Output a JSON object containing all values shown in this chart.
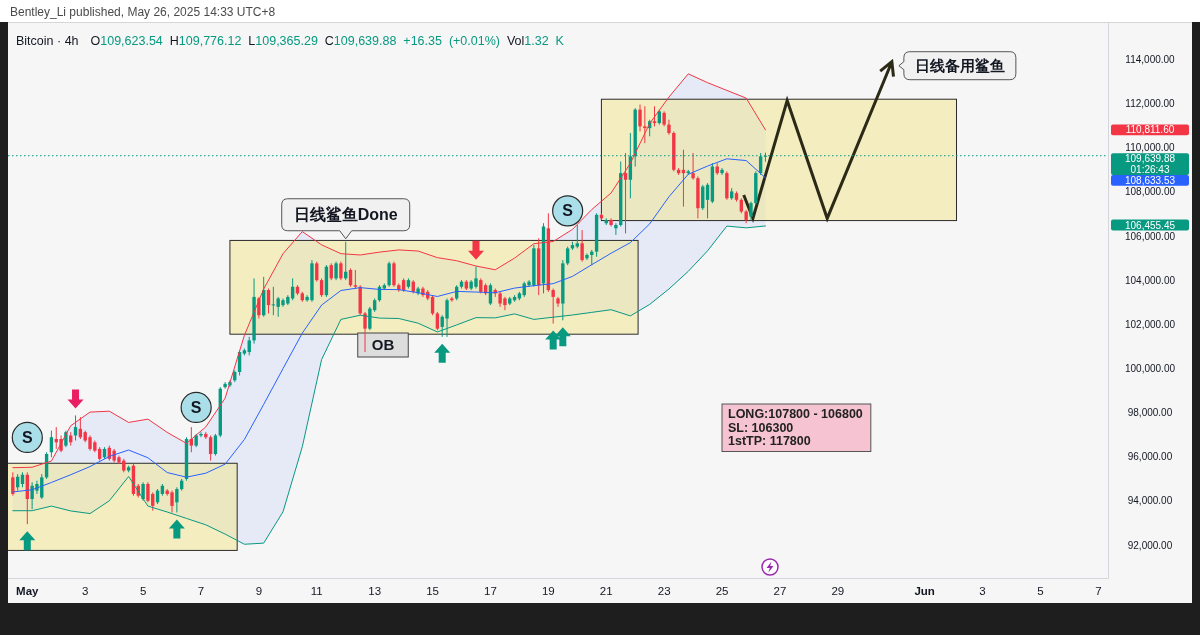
{
  "chart_data": {
    "type": "candlestick",
    "title": "Bitcoin · 4h",
    "subtitle": "O109,623.54 H109,776.12 L109,365.29 C109,639.88 +16.35 (+0.01%) Vol1.32 K",
    "annotations": [
      "Bentley_Li published, May 26, 2025 14:33 UTC+8",
      {
        "text": "日线鲨鱼Done",
        "x": "2025-05-12T00:00",
        "y": 105740
      },
      "日线备用鲨鱼",
      "OB",
      {
        "text": "S",
        "x": "2025-05-01T00:00",
        "y": 96870
      },
      {
        "text": "S",
        "x": "2025-05-06T20:00",
        "y": 98230
      },
      {
        "text": "S",
        "x": "2025-05-19T16:00",
        "y": 107140
      },
      "LONG:107800 - 106800",
      "SL: 106300",
      "1stTP: 117800",
      "01:26:43",
      "110,811.60",
      "108,633.53",
      "106,455.45"
    ],
    "x": [
      "2025-04-30T12:00",
      "2025-04-30T16:00",
      "2025-04-30T20:00",
      "2025-05-01T00:00",
      "2025-05-01T04:00",
      "2025-05-01T08:00",
      "2025-05-01T12:00",
      "2025-05-01T16:00",
      "2025-05-01T20:00",
      "2025-05-02T00:00",
      "2025-05-02T04:00",
      "2025-05-02T08:00",
      "2025-05-02T12:00",
      "2025-05-02T16:00",
      "2025-05-02T20:00",
      "2025-05-03T00:00",
      "2025-05-03T04:00",
      "2025-05-03T08:00",
      "2025-05-03T12:00",
      "2025-05-03T16:00",
      "2025-05-03T20:00",
      "2025-05-04T00:00",
      "2025-05-04T04:00",
      "2025-05-04T08:00",
      "2025-05-04T12:00",
      "2025-05-04T16:00",
      "2025-05-04T20:00",
      "2025-05-05T00:00",
      "2025-05-05T04:00",
      "2025-05-05T08:00",
      "2025-05-05T12:00",
      "2025-05-05T16:00",
      "2025-05-05T20:00",
      "2025-05-06T00:00",
      "2025-05-06T04:00",
      "2025-05-06T08:00",
      "2025-05-06T12:00",
      "2025-05-06T16:00",
      "2025-05-06T20:00",
      "2025-05-07T00:00",
      "2025-05-07T04:00",
      "2025-05-07T08:00",
      "2025-05-07T12:00",
      "2025-05-07T16:00",
      "2025-05-07T20:00",
      "2025-05-08T00:00",
      "2025-05-08T04:00",
      "2025-05-08T08:00",
      "2025-05-08T12:00",
      "2025-05-08T16:00",
      "2025-05-08T20:00",
      "2025-05-09T00:00",
      "2025-05-09T04:00",
      "2025-05-09T08:00",
      "2025-05-09T12:00",
      "2025-05-09T16:00",
      "2025-05-09T20:00",
      "2025-05-10T00:00",
      "2025-05-10T04:00",
      "2025-05-10T08:00",
      "2025-05-10T12:00",
      "2025-05-10T16:00",
      "2025-05-10T20:00",
      "2025-05-11T00:00",
      "2025-05-11T04:00",
      "2025-05-11T08:00",
      "2025-05-11T12:00",
      "2025-05-11T16:00",
      "2025-05-11T20:00",
      "2025-05-12T00:00",
      "2025-05-12T04:00",
      "2025-05-12T08:00",
      "2025-05-12T12:00",
      "2025-05-12T16:00",
      "2025-05-12T20:00",
      "2025-05-13T00:00",
      "2025-05-13T04:00",
      "2025-05-13T08:00",
      "2025-05-13T12:00",
      "2025-05-13T16:00",
      "2025-05-13T20:00",
      "2025-05-14T00:00",
      "2025-05-14T04:00",
      "2025-05-14T08:00",
      "2025-05-14T12:00",
      "2025-05-14T16:00",
      "2025-05-14T20:00",
      "2025-05-15T00:00",
      "2025-05-15T04:00",
      "2025-05-15T08:00",
      "2025-05-15T12:00",
      "2025-05-15T16:00",
      "2025-05-15T20:00",
      "2025-05-16T00:00",
      "2025-05-16T04:00",
      "2025-05-16T08:00",
      "2025-05-16T12:00",
      "2025-05-16T16:00",
      "2025-05-16T20:00",
      "2025-05-17T00:00",
      "2025-05-17T04:00",
      "2025-05-17T08:00",
      "2025-05-17T12:00",
      "2025-05-17T16:00",
      "2025-05-17T20:00",
      "2025-05-18T00:00",
      "2025-05-18T04:00",
      "2025-05-18T08:00",
      "2025-05-18T12:00",
      "2025-05-18T16:00",
      "2025-05-18T20:00",
      "2025-05-19T00:00",
      "2025-05-19T04:00",
      "2025-05-19T08:00",
      "2025-05-19T12:00",
      "2025-05-19T16:00",
      "2025-05-19T20:00",
      "2025-05-20T00:00",
      "2025-05-20T04:00",
      "2025-05-20T08:00",
      "2025-05-20T12:00",
      "2025-05-20T16:00",
      "2025-05-20T20:00",
      "2025-05-21T00:00",
      "2025-05-21T04:00",
      "2025-05-21T08:00",
      "2025-05-21T12:00",
      "2025-05-21T16:00",
      "2025-05-21T20:00",
      "2025-05-22T00:00",
      "2025-05-22T04:00",
      "2025-05-22T08:00",
      "2025-05-22T12:00",
      "2025-05-22T16:00",
      "2025-05-22T20:00",
      "2025-05-23T00:00",
      "2025-05-23T04:00",
      "2025-05-23T08:00",
      "2025-05-23T12:00",
      "2025-05-23T16:00",
      "2025-05-23T20:00",
      "2025-05-24T00:00",
      "2025-05-24T04:00",
      "2025-05-24T08:00",
      "2025-05-24T12:00",
      "2025-05-24T16:00",
      "2025-05-24T20:00",
      "2025-05-25T00:00",
      "2025-05-25T04:00",
      "2025-05-25T08:00",
      "2025-05-25T12:00",
      "2025-05-25T16:00",
      "2025-05-25T20:00",
      "2025-05-26T00:00",
      "2025-05-26T04:00",
      "2025-05-26T08:00",
      "2025-05-26T12:00"
    ],
    "ohlc": [
      [
        95060,
        95290,
        94230,
        94310
      ],
      [
        94610,
        95210,
        94460,
        95090
      ],
      [
        94760,
        95290,
        94610,
        95180
      ],
      [
        95180,
        95290,
        92940,
        94080
      ],
      [
        94080,
        94840,
        93620,
        94680
      ],
      [
        94460,
        94910,
        94310,
        94760
      ],
      [
        94150,
        95210,
        94080,
        95060
      ],
      [
        95060,
        96200,
        94990,
        96120
      ],
      [
        96200,
        97180,
        95970,
        96880
      ],
      [
        96800,
        97340,
        96350,
        96650
      ],
      [
        96800,
        96960,
        96200,
        96270
      ],
      [
        96500,
        97180,
        96430,
        97110
      ],
      [
        96960,
        97110,
        96500,
        96650
      ],
      [
        96960,
        97870,
        96730,
        97340
      ],
      [
        97260,
        97790,
        96800,
        96880
      ],
      [
        97110,
        97180,
        96650,
        96730
      ],
      [
        96880,
        96960,
        96270,
        96350
      ],
      [
        96650,
        96730,
        96200,
        96270
      ],
      [
        96350,
        96430,
        95820,
        95900
      ],
      [
        95970,
        96430,
        95900,
        96350
      ],
      [
        96400,
        96500,
        95820,
        95900
      ],
      [
        96270,
        96350,
        95740,
        95820
      ],
      [
        95970,
        96050,
        95670,
        95740
      ],
      [
        95820,
        95900,
        95290,
        95370
      ],
      [
        95370,
        95590,
        95290,
        95520
      ],
      [
        95590,
        95670,
        94230,
        94310
      ],
      [
        94680,
        94760,
        94150,
        94230
      ],
      [
        94080,
        94840,
        94000,
        94760
      ],
      [
        94760,
        94840,
        93930,
        94000
      ],
      [
        94310,
        94380,
        93550,
        93770
      ],
      [
        93930,
        94530,
        93850,
        94460
      ],
      [
        94310,
        94760,
        94230,
        94680
      ],
      [
        94460,
        94530,
        94230,
        94310
      ],
      [
        94380,
        94460,
        93470,
        93770
      ],
      [
        93930,
        94610,
        93470,
        94530
      ],
      [
        94530,
        94990,
        94460,
        94910
      ],
      [
        94990,
        96880,
        94910,
        96800
      ],
      [
        96800,
        97340,
        96200,
        96500
      ],
      [
        96500,
        97030,
        96430,
        96960
      ],
      [
        96960,
        97110,
        96880,
        97030
      ],
      [
        97030,
        97110,
        96800,
        96880
      ],
      [
        96880,
        96960,
        95820,
        96120
      ],
      [
        96120,
        97030,
        96050,
        96960
      ],
      [
        96960,
        99150,
        96880,
        99080
      ],
      [
        99150,
        99380,
        99080,
        99300
      ],
      [
        99230,
        99460,
        99150,
        99380
      ],
      [
        99460,
        99910,
        99380,
        99840
      ],
      [
        99840,
        100820,
        99680,
        100740
      ],
      [
        100670,
        100900,
        100590,
        100820
      ],
      [
        100740,
        101430,
        100590,
        101270
      ],
      [
        101270,
        104080,
        101120,
        103240
      ],
      [
        103170,
        103240,
        102260,
        102410
      ],
      [
        102410,
        104150,
        102340,
        103550
      ],
      [
        103550,
        103620,
        102490,
        102870
      ],
      [
        102870,
        103700,
        102410,
        102900
      ],
      [
        102790,
        103240,
        102340,
        103170
      ],
      [
        102870,
        103170,
        102790,
        103090
      ],
      [
        102940,
        103320,
        102870,
        103240
      ],
      [
        103170,
        104080,
        103090,
        103700
      ],
      [
        103700,
        103770,
        103320,
        103400
      ],
      [
        103400,
        103470,
        103020,
        103090
      ],
      [
        103090,
        103320,
        103020,
        103240
      ],
      [
        103090,
        104910,
        103020,
        104760
      ],
      [
        104760,
        104840,
        103930,
        104000
      ],
      [
        104000,
        104080,
        103240,
        103320
      ],
      [
        103320,
        104680,
        103240,
        104610
      ],
      [
        104680,
        104760,
        104000,
        104080
      ],
      [
        104080,
        104840,
        104000,
        104760
      ],
      [
        104760,
        104840,
        104000,
        104080
      ],
      [
        104080,
        105740,
        104000,
        104380
      ],
      [
        104460,
        104530,
        103700,
        103770
      ],
      [
        103770,
        104460,
        103620,
        103700
      ],
      [
        103700,
        103770,
        102410,
        102490
      ],
      [
        102490,
        102560,
        100740,
        101800
      ],
      [
        101800,
        102790,
        101730,
        102710
      ],
      [
        102640,
        103170,
        102560,
        103090
      ],
      [
        103090,
        103770,
        103020,
        103700
      ],
      [
        103620,
        103850,
        103550,
        103770
      ],
      [
        103770,
        104840,
        103700,
        104760
      ],
      [
        104760,
        104840,
        103700,
        103770
      ],
      [
        103770,
        103850,
        103470,
        103550
      ],
      [
        104000,
        104080,
        103470,
        103550
      ],
      [
        103700,
        104080,
        103620,
        104000
      ],
      [
        103930,
        104000,
        103400,
        103470
      ],
      [
        103400,
        103700,
        103320,
        103620
      ],
      [
        103620,
        103700,
        103240,
        103320
      ],
      [
        103470,
        103550,
        103090,
        103170
      ],
      [
        103240,
        103320,
        102410,
        102490
      ],
      [
        102490,
        102560,
        101730,
        101800
      ],
      [
        101880,
        102410,
        101430,
        102340
      ],
      [
        102260,
        103170,
        101430,
        103090
      ],
      [
        103170,
        103240,
        103020,
        103090
      ],
      [
        103170,
        103770,
        103090,
        103700
      ],
      [
        103700,
        104000,
        103620,
        103930
      ],
      [
        103930,
        104000,
        103550,
        103620
      ],
      [
        103620,
        104000,
        103550,
        103930
      ],
      [
        103700,
        104610,
        103620,
        104080
      ],
      [
        104000,
        104080,
        103400,
        103470
      ],
      [
        103770,
        103850,
        103320,
        103400
      ],
      [
        102940,
        103850,
        102870,
        103770
      ],
      [
        103550,
        103620,
        103240,
        103400
      ],
      [
        103400,
        103470,
        102790,
        102940
      ],
      [
        103170,
        103240,
        102640,
        102870
      ],
      [
        102940,
        103240,
        102870,
        103170
      ],
      [
        103090,
        103320,
        103020,
        103240
      ],
      [
        103170,
        103470,
        103090,
        103400
      ],
      [
        103320,
        103930,
        103240,
        103850
      ],
      [
        103770,
        104000,
        103700,
        103930
      ],
      [
        103770,
        105590,
        103700,
        105440
      ],
      [
        105440,
        105900,
        103320,
        103770
      ],
      [
        103850,
        106580,
        103400,
        106430
      ],
      [
        106350,
        107030,
        103470,
        103550
      ],
      [
        103550,
        103620,
        102030,
        103240
      ],
      [
        103170,
        103240,
        102790,
        102940
      ],
      [
        102940,
        104910,
        102180,
        104760
      ],
      [
        104760,
        105520,
        104680,
        105440
      ],
      [
        105440,
        105740,
        105370,
        105590
      ],
      [
        105520,
        106500,
        105440,
        105670
      ],
      [
        105670,
        106270,
        104840,
        104910
      ],
      [
        104990,
        105210,
        104910,
        105140
      ],
      [
        105140,
        105370,
        104680,
        105290
      ],
      [
        105290,
        107030,
        105060,
        106960
      ],
      [
        106960,
        107030,
        106730,
        106800
      ],
      [
        106580,
        106800,
        106500,
        106730
      ],
      [
        106730,
        106800,
        106430,
        106500
      ],
      [
        106350,
        106580,
        106050,
        106500
      ],
      [
        106500,
        109380,
        106430,
        108850
      ],
      [
        108850,
        109760,
        106120,
        108550
      ],
      [
        108550,
        110670,
        107710,
        109610
      ],
      [
        109610,
        111800,
        109150,
        111730
      ],
      [
        111730,
        111960,
        110740,
        110970
      ],
      [
        110970,
        111880,
        110210,
        110890
      ],
      [
        110890,
        111270,
        110520,
        111200
      ],
      [
        111200,
        111880,
        110970,
        111120
      ],
      [
        111120,
        111730,
        111050,
        111650
      ],
      [
        111580,
        111650,
        110970,
        111050
      ],
      [
        111050,
        111270,
        110590,
        110670
      ],
      [
        110670,
        110740,
        108930,
        109000
      ],
      [
        109000,
        109080,
        108770,
        108850
      ],
      [
        109000,
        109910,
        107330,
        108850
      ],
      [
        108850,
        109000,
        108770,
        108930
      ],
      [
        108850,
        109760,
        108550,
        108620
      ],
      [
        108620,
        108700,
        106800,
        107260
      ],
      [
        107260,
        108320,
        107180,
        108240
      ],
      [
        107640,
        108400,
        106800,
        108320
      ],
      [
        107560,
        109300,
        107490,
        109150
      ],
      [
        109150,
        109300,
        108770,
        108850
      ],
      [
        108850,
        109080,
        108770,
        109000
      ],
      [
        108850,
        108930,
        107640,
        107710
      ],
      [
        107710,
        108170,
        107640,
        108020
      ],
      [
        107940,
        108020,
        107560,
        107640
      ],
      [
        107640,
        107710,
        107030,
        107110
      ],
      [
        107110,
        107180,
        106580,
        106730
      ],
      [
        106880,
        107560,
        106730,
        107490
      ],
      [
        107490,
        108930,
        107410,
        108850
      ],
      [
        108850,
        109760,
        108770,
        109610
      ],
      [
        109623.54,
        109776.12,
        109365.29,
        109639.88
      ]
    ],
    "colors": [
      "#f23645",
      "#089981",
      "#089981",
      "#f23645",
      "#089981",
      "#089981",
      "#089981",
      "#089981",
      "#089981",
      "#f23645",
      "#f23645",
      "#089981",
      "#f23645",
      "#089981",
      "#f23645",
      "#f23645",
      "#f23645",
      "#f23645",
      "#f23645",
      "#089981",
      "#f23645",
      "#f23645",
      "#f23645",
      "#f23645",
      "#089981",
      "#f23645",
      "#f23645",
      "#089981",
      "#f23645",
      "#f23645",
      "#089981",
      "#089981",
      "#f23645",
      "#f23645",
      "#089981",
      "#089981",
      "#089981",
      "#f23645",
      "#089981",
      "#089981",
      "#f23645",
      "#f23645",
      "#089981",
      "#089981",
      "#089981",
      "#089981",
      "#089981",
      "#089981",
      "#089981",
      "#089981",
      "#089981",
      "#f23645",
      "#089981",
      "#f23645",
      "#089981",
      "#089981",
      "#089981",
      "#089981",
      "#089981",
      "#f23645",
      "#f23645",
      "#089981",
      "#089981",
      "#f23645",
      "#f23645",
      "#089981",
      "#f23645",
      "#089981",
      "#f23645",
      "#089981",
      "#f23645",
      "#f23645",
      "#f23645",
      "#f23645",
      "#089981",
      "#089981",
      "#089981",
      "#089981",
      "#089981",
      "#f23645",
      "#f23645",
      "#f23645",
      "#089981",
      "#f23645",
      "#089981",
      "#f23645",
      "#f23645",
      "#f23645",
      "#f23645",
      "#089981",
      "#089981",
      "#f23645",
      "#089981",
      "#089981",
      "#f23645",
      "#089981",
      "#089981",
      "#f23645",
      "#f23645",
      "#089981",
      "#f23645",
      "#f23645",
      "#f23645",
      "#089981",
      "#089981",
      "#089981",
      "#089981",
      "#089981",
      "#089981",
      "#f23645",
      "#089981",
      "#f23645",
      "#f23645",
      "#f23645",
      "#089981",
      "#089981",
      "#089981",
      "#089981",
      "#f23645",
      "#089981",
      "#089981",
      "#089981",
      "#f23645",
      "#089981",
      "#f23645",
      "#089981",
      "#089981",
      "#f23645",
      "#089981",
      "#089981",
      "#f23645",
      "#f23645",
      "#089981",
      "#f23645",
      "#089981",
      "#f23645",
      "#f23645",
      "#f23645",
      "#f23645",
      "#f23645",
      "#089981",
      "#f23645",
      "#f23645",
      "#089981",
      "#089981",
      "#089981",
      "#f23645",
      "#089981",
      "#f23645",
      "#089981",
      "#f23645",
      "#f23645",
      "#f23645",
      "#089981",
      "#089981",
      "#089981",
      "#089981"
    ],
    "series": [
      {
        "type": "line",
        "color": "#2962ff",
        "x": [
          "2025-04-30T12:00",
          "2025-05-01T04:00",
          "2025-05-01T20:00",
          "2025-05-02T12:00",
          "2025-05-03T04:00",
          "2025-05-03T20:00",
          "2025-05-04T12:00",
          "2025-05-05T04:00",
          "2025-05-05T20:00",
          "2025-05-06T12:00",
          "2025-05-07T04:00",
          "2025-05-07T20:00",
          "2025-05-08T12:00",
          "2025-05-09T04:00",
          "2025-05-09T20:00",
          "2025-05-10T12:00",
          "2025-05-11T04:00",
          "2025-05-11T20:00",
          "2025-05-12T12:00",
          "2025-05-13T04:00",
          "2025-05-13T20:00",
          "2025-05-14T12:00",
          "2025-05-15T04:00",
          "2025-05-15T20:00",
          "2025-05-16T12:00",
          "2025-05-17T04:00",
          "2025-05-17T20:00",
          "2025-05-18T12:00",
          "2025-05-19T04:00",
          "2025-05-19T20:00",
          "2025-05-20T12:00",
          "2025-05-21T04:00",
          "2025-05-21T20:00",
          "2025-05-22T12:00",
          "2025-05-23T04:00",
          "2025-05-23T20:00",
          "2025-05-24T12:00",
          "2025-05-25T04:00",
          "2025-05-25T20:00",
          "2025-05-26T12:00"
        ],
        "values": [
          94400,
          94500,
          94830,
          95180,
          95550,
          96010,
          96300,
          95950,
          95280,
          95070,
          95250,
          95660,
          96780,
          98370,
          99990,
          101600,
          102870,
          103530,
          103660,
          103580,
          103570,
          103430,
          103260,
          103490,
          103460,
          103430,
          103640,
          103750,
          103840,
          104170,
          104700,
          105220,
          105700,
          106550,
          107780,
          108800,
          109170,
          109500,
          109420,
          108633.53
        ],
        "lower": [
          93550,
          93550,
          93760,
          93540,
          93420,
          94000,
          95100,
          93760,
          93490,
          93200,
          92910,
          92490,
          92030,
          92080,
          93500,
          96450,
          100400,
          102220,
          102410,
          102280,
          102260,
          102050,
          101650,
          101970,
          102300,
          102290,
          102470,
          102220,
          102320,
          102420,
          102540,
          102660,
          102380,
          102900,
          103600,
          104400,
          105330,
          106450,
          106370,
          106455.45
        ],
        "upper": [
          95500,
          95520,
          95800,
          97400,
          98020,
          98060,
          97550,
          97700,
          97100,
          96600,
          97350,
          98650,
          101500,
          103600,
          105200,
          106200,
          105600,
          105200,
          105140,
          105270,
          105370,
          105320,
          105020,
          104880,
          104640,
          104470,
          105000,
          105650,
          105750,
          106300,
          107200,
          107950,
          109300,
          111100,
          112300,
          113350,
          112950,
          112600,
          112250,
          110811.6
        ]
      },
      {
        "type": "line",
        "color": "#f23645",
        "x": [
          "2025-04-30T12:00",
          "2025-05-01T04:00",
          "2025-05-01T20:00",
          "2025-05-02T12:00",
          "2025-05-03T04:00",
          "2025-05-03T20:00",
          "2025-05-04T12:00",
          "2025-05-05T04:00",
          "2025-05-05T20:00",
          "2025-05-06T12:00",
          "2025-05-07T04:00",
          "2025-05-07T20:00",
          "2025-05-08T12:00",
          "2025-05-09T04:00",
          "2025-05-09T20:00",
          "2025-05-10T12:00",
          "2025-05-11T04:00",
          "2025-05-11T20:00",
          "2025-05-12T12:00",
          "2025-05-13T04:00",
          "2025-05-13T20:00",
          "2025-05-14T12:00",
          "2025-05-15T04:00",
          "2025-05-15T20:00",
          "2025-05-16T12:00",
          "2025-05-17T04:00",
          "2025-05-17T20:00",
          "2025-05-18T12:00",
          "2025-05-19T04:00",
          "2025-05-19T20:00",
          "2025-05-20T12:00",
          "2025-05-21T04:00",
          "2025-05-21T20:00",
          "2025-05-22T12:00",
          "2025-05-23T04:00",
          "2025-05-23T20:00",
          "2025-05-24T12:00",
          "2025-05-25T04:00",
          "2025-05-25T20:00",
          "2025-05-26T12:00"
        ],
        "values": [
          95500,
          95520,
          95800,
          97400,
          98020,
          98060,
          97550,
          97700,
          97100,
          96600,
          97350,
          98650,
          101500,
          103600,
          105200,
          106200,
          105600,
          105200,
          105140,
          105270,
          105370,
          105320,
          105020,
          104880,
          104640,
          104470,
          105000,
          105650,
          105750,
          106300,
          107200,
          107950,
          109300,
          111100,
          112300,
          113350,
          112950,
          112600,
          112250,
          110811.6
        ]
      },
      {
        "type": "line",
        "color": "#089981",
        "x": [
          "2025-04-30T12:00",
          "2025-05-01T04:00",
          "2025-05-01T20:00",
          "2025-05-02T12:00",
          "2025-05-03T04:00",
          "2025-05-03T20:00",
          "2025-05-04T12:00",
          "2025-05-05T04:00",
          "2025-05-05T20:00",
          "2025-05-06T12:00",
          "2025-05-07T04:00",
          "2025-05-07T20:00",
          "2025-05-08T12:00",
          "2025-05-09T04:00",
          "2025-05-09T20:00",
          "2025-05-10T12:00",
          "2025-05-11T04:00",
          "2025-05-11T20:00",
          "2025-05-12T12:00",
          "2025-05-13T04:00",
          "2025-05-13T20:00",
          "2025-05-14T12:00",
          "2025-05-15T04:00",
          "2025-05-15T20:00",
          "2025-05-16T12:00",
          "2025-05-17T04:00",
          "2025-05-17T20:00",
          "2025-05-18T12:00",
          "2025-05-19T04:00",
          "2025-05-19T20:00",
          "2025-05-20T12:00",
          "2025-05-21T04:00",
          "2025-05-21T20:00",
          "2025-05-22T12:00",
          "2025-05-23T04:00",
          "2025-05-23T20:00",
          "2025-05-24T12:00",
          "2025-05-25T04:00",
          "2025-05-25T20:00",
          "2025-05-26T12:00"
        ],
        "values": [
          93550,
          93550,
          93760,
          93540,
          93420,
          94000,
          95100,
          93760,
          93490,
          93200,
          92910,
          92490,
          92030,
          92080,
          93500,
          96450,
          100400,
          102220,
          102410,
          102280,
          102260,
          102050,
          101650,
          101970,
          102300,
          102290,
          102470,
          102220,
          102320,
          102420,
          102540,
          102660,
          102380,
          102900,
          103600,
          104400,
          105330,
          106450,
          106370,
          106455.45
        ]
      }
    ],
    "xlim": [
      "2025-04-30T08:00",
      "2025-06-07T08:00"
    ],
    "ylim": [
      90500,
      115700
    ],
    "xticks": [
      {
        "value": "2025-05-01",
        "label": "May"
      },
      {
        "value": "2025-05-03",
        "label": "3"
      },
      {
        "value": "2025-05-05",
        "label": "5"
      },
      {
        "value": "2025-05-07",
        "label": "7"
      },
      {
        "value": "2025-05-09",
        "label": "9"
      },
      {
        "value": "2025-05-11",
        "label": "11"
      },
      {
        "value": "2025-05-13",
        "label": "13"
      },
      {
        "value": "2025-05-15",
        "label": "15"
      },
      {
        "value": "2025-05-17",
        "label": "17"
      },
      {
        "value": "2025-05-19",
        "label": "19"
      },
      {
        "value": "2025-05-21",
        "label": "21"
      },
      {
        "value": "2025-05-23",
        "label": "23"
      },
      {
        "value": "2025-05-25",
        "label": "25"
      },
      {
        "value": "2025-05-27",
        "label": "27"
      },
      {
        "value": "2025-05-29",
        "label": "29"
      },
      {
        "value": "2025-06-01",
        "label": "Jun"
      },
      {
        "value": "2025-06-03",
        "label": "3"
      },
      {
        "value": "2025-06-05",
        "label": "5"
      },
      {
        "value": "2025-06-07",
        "label": "7"
      }
    ],
    "yticks": [
      {
        "value": 92000,
        "label": "92,000.00"
      },
      {
        "value": 94000,
        "label": "94,000.00"
      },
      {
        "value": 96000,
        "label": "96,000.00"
      },
      {
        "value": 98000,
        "label": "98,000.00"
      },
      {
        "value": 100000,
        "label": "100,000.00"
      },
      {
        "value": 102000,
        "label": "102,000.00"
      },
      {
        "value": 104000,
        "label": "104,000.00"
      },
      {
        "value": 106000,
        "label": "106,000.00"
      },
      {
        "value": 108000,
        "label": "108,000.00"
      },
      {
        "value": 110000,
        "label": "110,000.00"
      },
      {
        "value": 112000,
        "label": "112,000.00"
      },
      {
        "value": 114000,
        "label": "114,000.00"
      }
    ],
    "ref_lines": [
      {
        "axis": "y",
        "value": 109639.88,
        "label": "109,639.88",
        "color": "#089981",
        "line_style": "dotted"
      }
    ]
  }
}
